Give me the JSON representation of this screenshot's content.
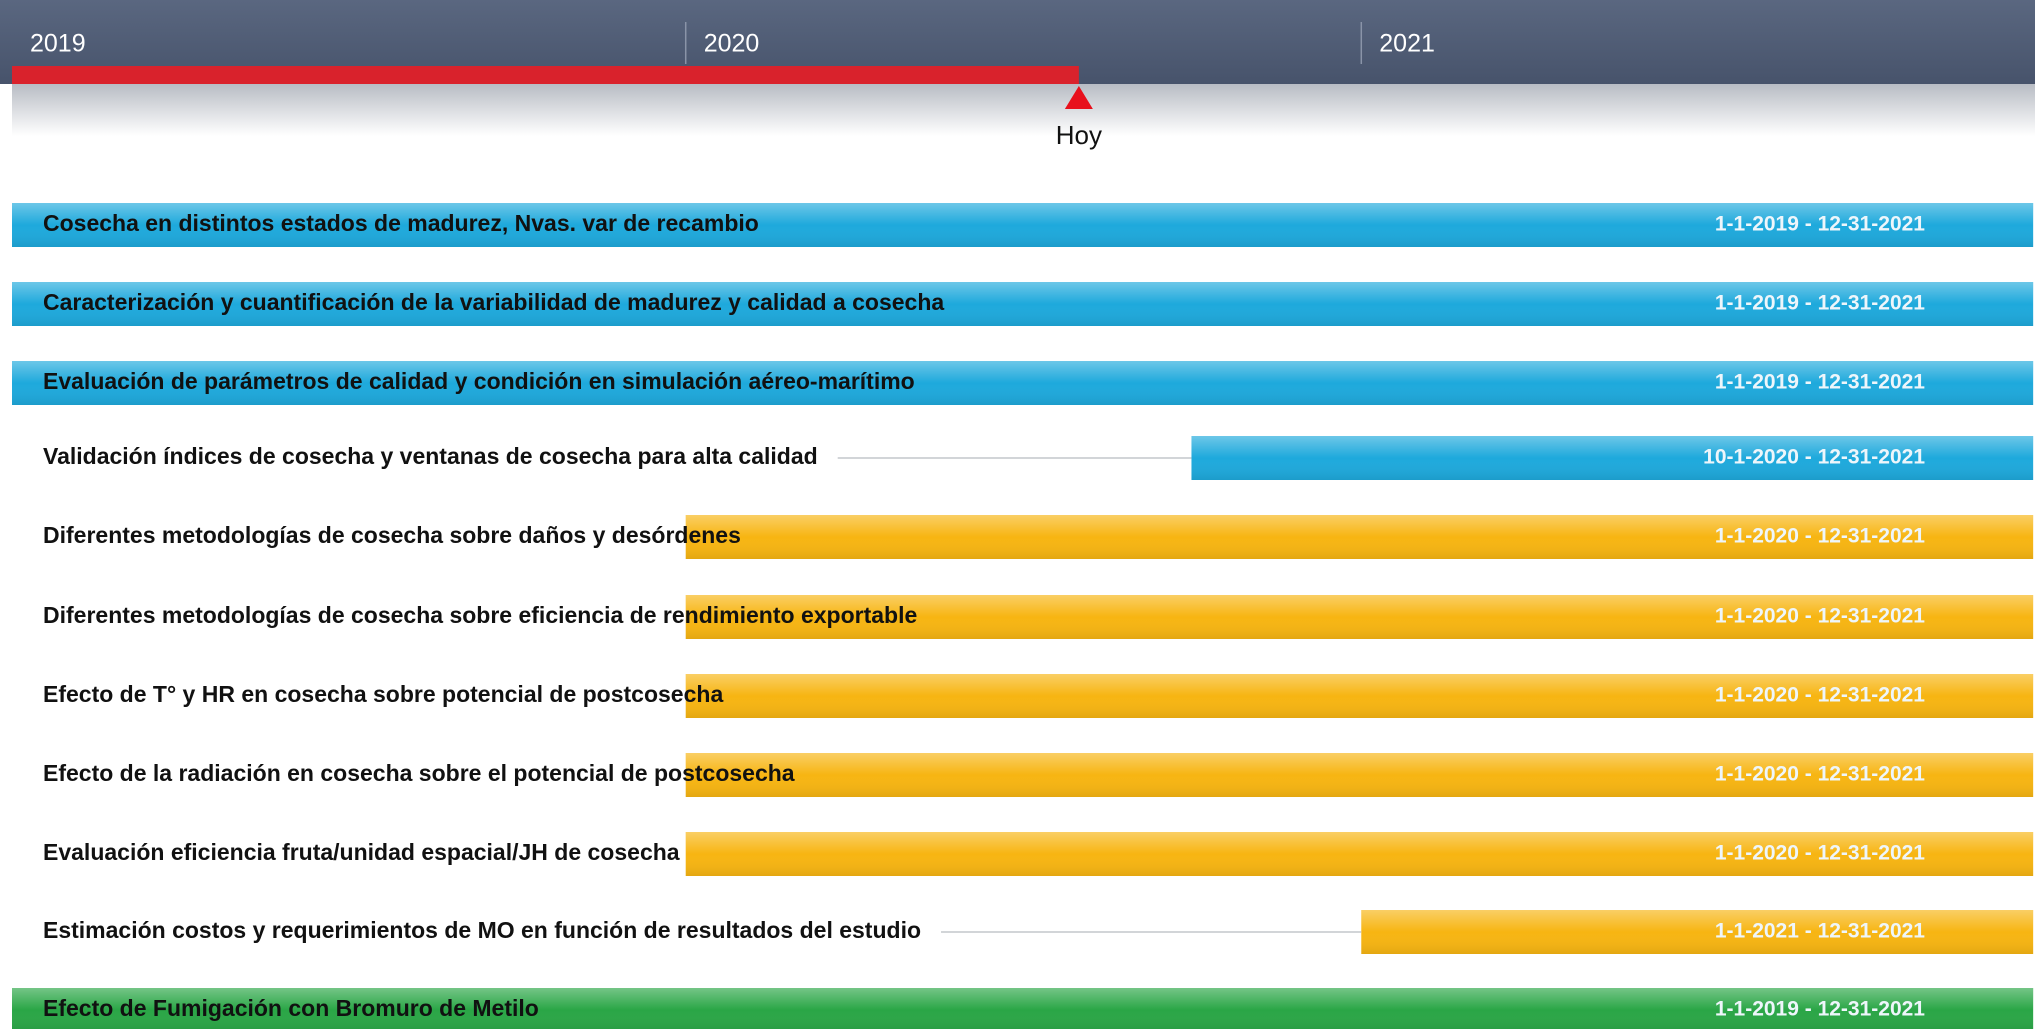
{
  "chart_data": {
    "type": "gantt",
    "xlim": [
      "2019-01-01",
      "2022-01-01"
    ],
    "xticks": [
      {
        "value": "2019-01-01",
        "label": "2019"
      },
      {
        "value": "2020-01-01",
        "label": "2020"
      },
      {
        "value": "2021-01-01",
        "label": "2021"
      }
    ],
    "today": "2020-08-01",
    "today_label": "Hoy",
    "tasks": [
      {
        "name": "Cosecha en distintos estados de madurez, Nvas. var de recambio",
        "start": "2019-01-01",
        "end": "2021-12-31",
        "label": "1-1-2019 - 12-31-2021",
        "color": "#1ea9dc"
      },
      {
        "name": "Caracterización y cuantificación de la variabilidad de madurez y calidad a cosecha",
        "start": "2019-01-01",
        "end": "2021-12-31",
        "label": "1-1-2019 - 12-31-2021",
        "color": "#1ea9dc"
      },
      {
        "name": "Evaluación de parámetros de calidad y condición en simulación aéreo-marítimo",
        "start": "2019-01-01",
        "end": "2021-12-31",
        "label": "1-1-2019 - 12-31-2021",
        "color": "#1ea9dc"
      },
      {
        "name": "Validación índices de cosecha y ventanas de cosecha para alta calidad",
        "start": "2020-10-01",
        "end": "2021-12-31",
        "label": "10-1-2020 - 12-31-2021",
        "color": "#1ea9dc"
      },
      {
        "name": "Diferentes metodologías de cosecha sobre daños y desórdenes",
        "start": "2020-01-01",
        "end": "2021-12-31",
        "label": "1-1-2020 - 12-31-2021",
        "color": "#f7b512"
      },
      {
        "name": "Diferentes metodologías de cosecha sobre eficiencia de rendimiento exportable",
        "start": "2020-01-01",
        "end": "2021-12-31",
        "label": "1-1-2020 - 12-31-2021",
        "color": "#f7b512"
      },
      {
        "name": "Efecto de T° y HR en cosecha sobre potencial de postcosecha",
        "start": "2020-01-01",
        "end": "2021-12-31",
        "label": "1-1-2020 - 12-31-2021",
        "color": "#f7b512"
      },
      {
        "name": "Efecto de la radiación en cosecha sobre el potencial de postcosecha",
        "start": "2020-01-01",
        "end": "2021-12-31",
        "label": "1-1-2020 - 12-31-2021",
        "color": "#f7b512"
      },
      {
        "name": "Evaluación eficiencia fruta/unidad espacial/JH de cosecha",
        "start": "2020-01-01",
        "end": "2021-12-31",
        "label": "1-1-2020 - 12-31-2021",
        "color": "#f7b512"
      },
      {
        "name": "Estimación costos y requerimientos de MO en función de resultados del estudio",
        "start": "2021-01-01",
        "end": "2021-12-31",
        "label": "1-1-2021 - 12-31-2021",
        "color": "#f7b512"
      },
      {
        "name": "Efecto de Fumigación con Bromuro de Metilo",
        "start": "2019-01-01",
        "end": "2021-12-31",
        "label": "1-1-2019 - 12-31-2021",
        "color": "#2aa646"
      }
    ]
  }
}
